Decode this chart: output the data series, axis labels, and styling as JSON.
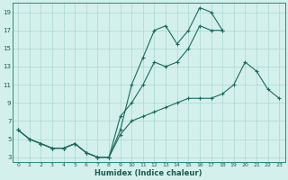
{
  "xlabel": "Humidex (Indice chaleur)",
  "bg_color": "#d4f0ec",
  "line_color": "#1a6b5e",
  "grid_color": "#aad8d3",
  "xlim": [
    -0.5,
    23.5
  ],
  "ylim": [
    2.5,
    20.0
  ],
  "yticks": [
    3,
    5,
    7,
    9,
    11,
    13,
    15,
    17,
    19
  ],
  "xticks": [
    0,
    1,
    2,
    3,
    4,
    5,
    6,
    7,
    8,
    9,
    10,
    11,
    12,
    13,
    14,
    15,
    16,
    17,
    18,
    19,
    20,
    21,
    22,
    23
  ],
  "line1_x": [
    0,
    1,
    2,
    3,
    4,
    5,
    6,
    7,
    8,
    9,
    10,
    11,
    12,
    13,
    14,
    15,
    16,
    17,
    18
  ],
  "line1_y": [
    6,
    5,
    4.5,
    4,
    4,
    4.5,
    3.5,
    3,
    3,
    6,
    11,
    14,
    17,
    17.5,
    15.5,
    17,
    19.5,
    19,
    17
  ],
  "line2_x": [
    0,
    1,
    2,
    3,
    4,
    5,
    6,
    7,
    8,
    9,
    10,
    11,
    12,
    13,
    14,
    15,
    16,
    17,
    18
  ],
  "line2_y": [
    6,
    5,
    4.5,
    4,
    4,
    4.5,
    3.5,
    3,
    3,
    7.5,
    9,
    11,
    13.5,
    13,
    13.5,
    15,
    17.5,
    17,
    17
  ],
  "line3_x": [
    0,
    1,
    2,
    3,
    4,
    5,
    6,
    7,
    8,
    9,
    10,
    11,
    12,
    13,
    14,
    15,
    16,
    17,
    18,
    19,
    20,
    21,
    22,
    23
  ],
  "line3_y": [
    6,
    5,
    4.5,
    4,
    4,
    4.5,
    3.5,
    3,
    3,
    5.5,
    7,
    7.5,
    8,
    8.5,
    9,
    9.5,
    9.5,
    9.5,
    10,
    11,
    13.5,
    12.5,
    10.5,
    9.5
  ]
}
